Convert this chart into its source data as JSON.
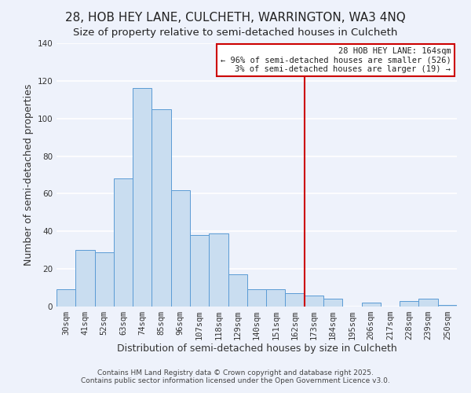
{
  "title": "28, HOB HEY LANE, CULCHETH, WARRINGTON, WA3 4NQ",
  "subtitle": "Size of property relative to semi-detached houses in Culcheth",
  "xlabel": "Distribution of semi-detached houses by size in Culcheth",
  "ylabel": "Number of semi-detached properties",
  "bar_labels": [
    "30sqm",
    "41sqm",
    "52sqm",
    "63sqm",
    "74sqm",
    "85sqm",
    "96sqm",
    "107sqm",
    "118sqm",
    "129sqm",
    "140sqm",
    "151sqm",
    "162sqm",
    "173sqm",
    "184sqm",
    "195sqm",
    "206sqm",
    "217sqm",
    "228sqm",
    "239sqm",
    "250sqm"
  ],
  "bar_values": [
    9,
    30,
    29,
    68,
    116,
    105,
    62,
    38,
    39,
    17,
    9,
    9,
    7,
    6,
    4,
    0,
    2,
    0,
    3,
    4,
    1
  ],
  "bar_color": "#c9ddf0",
  "bar_edge_color": "#5b9bd5",
  "background_color": "#eef2fb",
  "grid_color": "#ffffff",
  "vline_x": 12.5,
  "vline_color": "#cc0000",
  "legend_title": "28 HOB HEY LANE: 164sqm",
  "legend_line1": "← 96% of semi-detached houses are smaller (526)",
  "legend_line2": "3% of semi-detached houses are larger (19) →",
  "ylim": [
    0,
    140
  ],
  "yticks": [
    0,
    20,
    40,
    60,
    80,
    100,
    120,
    140
  ],
  "footnote1": "Contains HM Land Registry data © Crown copyright and database right 2025.",
  "footnote2": "Contains public sector information licensed under the Open Government Licence v3.0.",
  "title_fontsize": 11,
  "subtitle_fontsize": 9.5,
  "axis_label_fontsize": 9,
  "tick_fontsize": 7.5
}
